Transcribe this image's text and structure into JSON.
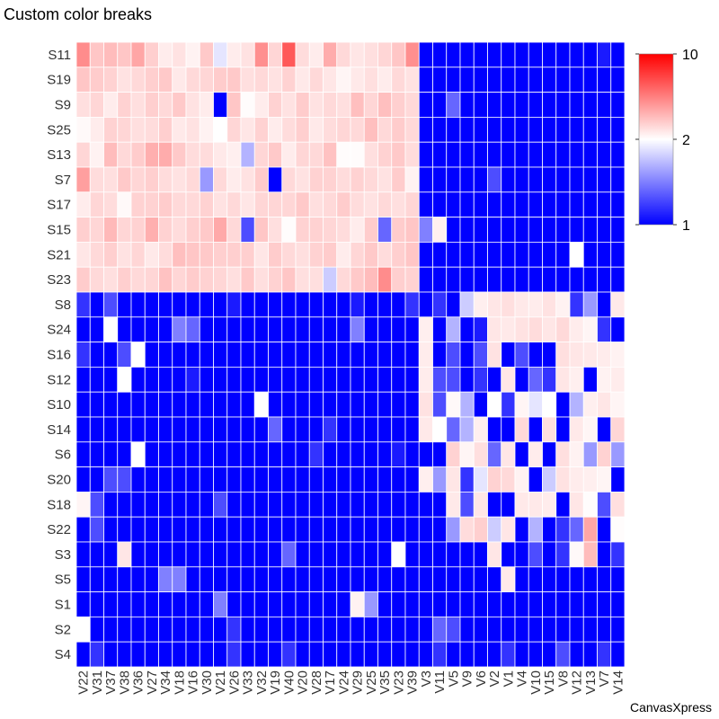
{
  "chart_data": {
    "type": "heatmap",
    "title": "Custom color breaks",
    "rows": [
      "S11",
      "S19",
      "S9",
      "S25",
      "S13",
      "S7",
      "S17",
      "S15",
      "S21",
      "S23",
      "S8",
      "S24",
      "S16",
      "S12",
      "S10",
      "S14",
      "S6",
      "S20",
      "S18",
      "S22",
      "S3",
      "S5",
      "S1",
      "S2",
      "S4"
    ],
    "columns": [
      "V22",
      "V31",
      "V37",
      "V38",
      "V36",
      "V27",
      "V34",
      "V18",
      "V16",
      "V30",
      "V21",
      "V26",
      "V33",
      "V32",
      "V19",
      "V40",
      "V20",
      "V28",
      "V17",
      "V24",
      "V29",
      "V25",
      "V35",
      "V23",
      "V39",
      "V3",
      "V11",
      "V5",
      "V9",
      "V6",
      "V2",
      "V1",
      "V4",
      "V10",
      "V15",
      "V8",
      "V12",
      "V13",
      "V7",
      "V14"
    ],
    "values": [
      [
        5.6,
        3.8,
        4.1,
        3.8,
        4.8,
        3.5,
        2.6,
        2.9,
        2.4,
        3.7,
        1.9,
        2.6,
        2.9,
        5.5,
        3.3,
        7.2,
        3.1,
        2.6,
        4.6,
        3.2,
        2.8,
        3.0,
        3.3,
        3.8,
        5.5,
        1.0,
        1.0,
        1.0,
        1.0,
        1.0,
        1.0,
        1.0,
        1.0,
        1.0,
        1.0,
        1.0,
        1.0,
        1.0,
        1.1,
        1.0
      ],
      [
        3.8,
        3.6,
        3.4,
        2.9,
        3.2,
        3.5,
        3.7,
        2.7,
        3.2,
        3.3,
        3.6,
        3.7,
        3.0,
        3.2,
        2.9,
        3.4,
        2.7,
        3.2,
        2.8,
        2.3,
        2.7,
        3.0,
        2.6,
        3.2,
        2.9,
        1.0,
        1.0,
        1.0,
        1.0,
        1.0,
        1.0,
        1.0,
        1.0,
        1.0,
        1.0,
        1.0,
        1.0,
        1.0,
        1.0,
        1.0
      ],
      [
        3.0,
        3.3,
        2.6,
        3.4,
        3.0,
        3.5,
        3.2,
        3.7,
        2.9,
        2.6,
        1.0,
        3.8,
        2.1,
        2.6,
        3.4,
        2.9,
        3.6,
        2.9,
        3.2,
        3.0,
        4.0,
        3.3,
        4.0,
        3.5,
        3.2,
        1.0,
        1.0,
        1.4,
        1.0,
        1.0,
        1.0,
        1.0,
        1.0,
        1.0,
        1.0,
        1.0,
        1.0,
        1.0,
        1.0,
        1.0
      ],
      [
        2.2,
        2.6,
        3.4,
        3.3,
        3.0,
        3.1,
        3.5,
        2.7,
        2.9,
        2.4,
        2.0,
        3.3,
        2.8,
        3.4,
        2.6,
        3.1,
        3.5,
        2.7,
        3.1,
        3.3,
        3.2,
        4.0,
        3.2,
        3.6,
        3.2,
        1.0,
        1.0,
        1.0,
        1.0,
        1.0,
        1.0,
        1.0,
        1.0,
        1.0,
        1.0,
        1.0,
        1.0,
        1.0,
        1.0,
        1.0
      ],
      [
        3.3,
        2.4,
        4.1,
        3.2,
        3.6,
        4.5,
        4.6,
        3.7,
        3.1,
        3.1,
        2.7,
        2.5,
        1.7,
        3.3,
        3.7,
        2.6,
        3.3,
        3.2,
        3.9,
        2.1,
        2.1,
        3.0,
        3.4,
        3.7,
        3.1,
        1.0,
        1.0,
        1.0,
        1.0,
        1.0,
        1.0,
        1.0,
        1.0,
        1.0,
        1.0,
        1.0,
        1.0,
        1.0,
        1.0,
        1.0
      ],
      [
        5.0,
        3.1,
        3.0,
        3.7,
        3.3,
        3.5,
        3.1,
        2.9,
        3.2,
        1.6,
        3.2,
        2.6,
        2.9,
        3.6,
        1.0,
        3.2,
        2.9,
        3.4,
        3.4,
        3.1,
        3.4,
        3.2,
        2.9,
        3.6,
        2.4,
        1.0,
        1.0,
        1.0,
        1.0,
        1.0,
        1.3,
        1.0,
        1.0,
        1.0,
        1.0,
        1.0,
        1.0,
        1.0,
        1.0,
        1.0
      ],
      [
        2.6,
        3.3,
        3.1,
        2.2,
        3.4,
        3.4,
        3.6,
        3.2,
        3.2,
        3.4,
        2.9,
        3.2,
        2.8,
        3.3,
        3.3,
        3.3,
        3.7,
        3.0,
        3.2,
        3.6,
        3.1,
        2.9,
        3.2,
        3.0,
        3.3,
        1.0,
        1.0,
        1.0,
        1.0,
        1.0,
        1.0,
        1.0,
        1.0,
        1.0,
        1.0,
        1.0,
        1.0,
        1.0,
        1.0,
        1.0
      ],
      [
        3.5,
        3.3,
        4.2,
        3.3,
        3.4,
        4.5,
        3.4,
        3.1,
        3.5,
        3.7,
        4.7,
        3.2,
        1.3,
        3.8,
        3.0,
        2.1,
        3.4,
        3.4,
        3.3,
        3.1,
        2.6,
        3.6,
        1.4,
        3.6,
        3.8,
        1.5,
        2.5,
        1.0,
        1.0,
        1.0,
        1.0,
        1.0,
        1.0,
        1.0,
        1.0,
        1.0,
        1.0,
        1.0,
        1.0,
        1.0
      ],
      [
        2.8,
        3.2,
        3.5,
        2.9,
        3.3,
        2.7,
        3.1,
        4.0,
        3.8,
        3.7,
        3.5,
        3.5,
        3.5,
        2.8,
        3.6,
        3.2,
        3.0,
        3.4,
        3.6,
        2.6,
        3.3,
        3.7,
        3.1,
        3.5,
        3.8,
        1.0,
        1.0,
        1.0,
        1.0,
        1.0,
        1.0,
        1.0,
        1.0,
        1.0,
        1.0,
        1.0,
        2.0,
        1.0,
        1.0,
        1.0
      ],
      [
        3.6,
        3.2,
        3.0,
        3.5,
        3.2,
        3.3,
        3.9,
        3.3,
        3.6,
        3.4,
        3.3,
        3.0,
        3.7,
        3.0,
        3.4,
        3.8,
        3.0,
        3.0,
        1.8,
        3.2,
        3.7,
        4.1,
        5.6,
        3.5,
        3.4,
        1.0,
        1.0,
        1.0,
        1.0,
        1.0,
        1.0,
        1.0,
        1.0,
        1.0,
        1.0,
        1.0,
        1.0,
        1.0,
        1.0,
        1.0
      ],
      [
        1.2,
        1.0,
        1.3,
        1.0,
        1.0,
        1.0,
        1.0,
        1.0,
        1.0,
        1.0,
        1.0,
        1.1,
        1.0,
        1.0,
        1.0,
        1.0,
        1.0,
        1.0,
        1.0,
        1.0,
        1.1,
        1.0,
        1.0,
        1.0,
        1.2,
        1.0,
        1.2,
        1.0,
        1.8,
        2.5,
        2.8,
        3.0,
        2.7,
        2.6,
        2.9,
        2.4,
        1.2,
        1.6,
        1.0,
        2.7
      ],
      [
        1.0,
        1.0,
        2.0,
        1.0,
        1.0,
        1.0,
        1.0,
        1.5,
        1.4,
        1.0,
        1.0,
        1.0,
        1.0,
        1.0,
        1.0,
        1.0,
        1.0,
        1.0,
        1.0,
        1.0,
        1.5,
        1.0,
        1.0,
        1.0,
        1.0,
        2.5,
        1.0,
        1.7,
        1.0,
        1.1,
        2.8,
        2.7,
        2.9,
        3.1,
        2.8,
        3.2,
        2.6,
        2.3,
        1.2,
        1.0
      ],
      [
        1.2,
        1.0,
        1.0,
        1.3,
        2.0,
        1.0,
        1.0,
        1.0,
        1.0,
        1.0,
        1.0,
        1.0,
        1.0,
        1.0,
        1.0,
        1.0,
        1.0,
        1.0,
        1.0,
        1.0,
        1.0,
        1.0,
        1.0,
        1.0,
        1.0,
        2.6,
        1.0,
        1.3,
        1.0,
        1.3,
        2.9,
        1.0,
        1.3,
        1.0,
        1.0,
        3.0,
        2.8,
        2.7,
        2.6,
        2.4
      ],
      [
        1.0,
        1.0,
        1.0,
        2.0,
        1.0,
        1.0,
        1.0,
        1.0,
        1.1,
        1.0,
        1.0,
        1.0,
        1.0,
        1.0,
        1.0,
        1.0,
        1.0,
        1.0,
        1.0,
        1.0,
        1.0,
        1.0,
        1.0,
        1.0,
        1.0,
        2.6,
        1.3,
        1.3,
        1.0,
        1.2,
        1.0,
        2.8,
        1.0,
        1.4,
        1.2,
        2.8,
        2.5,
        1.0,
        2.4,
        2.6
      ],
      [
        1.0,
        1.0,
        1.0,
        1.0,
        1.0,
        1.0,
        1.0,
        1.0,
        1.0,
        1.0,
        1.0,
        1.0,
        1.0,
        2.0,
        1.0,
        1.0,
        1.0,
        1.0,
        1.0,
        1.0,
        1.0,
        1.0,
        1.0,
        1.0,
        1.0,
        2.9,
        1.3,
        2.2,
        1.7,
        1.0,
        2.0,
        1.2,
        2.3,
        1.9,
        2.0,
        1.0,
        1.7,
        2.5,
        2.8,
        2.3
      ],
      [
        1.0,
        1.0,
        1.0,
        1.0,
        1.0,
        1.0,
        1.0,
        1.0,
        1.0,
        1.0,
        1.0,
        1.0,
        1.0,
        1.0,
        1.4,
        1.0,
        1.0,
        1.0,
        1.2,
        1.0,
        1.0,
        1.0,
        1.0,
        1.0,
        1.0,
        2.7,
        2.0,
        1.4,
        1.7,
        2.5,
        1.0,
        1.0,
        3.2,
        1.0,
        3.0,
        1.0,
        2.7,
        2.3,
        1.0,
        3.3
      ],
      [
        1.0,
        1.0,
        1.0,
        1.0,
        2.0,
        1.0,
        1.0,
        1.0,
        1.0,
        1.0,
        1.0,
        1.0,
        1.0,
        1.0,
        1.0,
        1.0,
        1.0,
        1.2,
        1.0,
        1.0,
        1.0,
        1.0,
        1.0,
        1.1,
        1.0,
        1.0,
        1.0,
        3.4,
        2.3,
        3.0,
        1.4,
        2.8,
        1.0,
        2.6,
        1.0,
        3.0,
        2.4,
        1.6,
        3.4,
        1.6
      ],
      [
        1.0,
        1.0,
        1.3,
        1.3,
        1.0,
        1.0,
        1.0,
        1.0,
        1.0,
        1.0,
        1.0,
        1.0,
        1.0,
        1.0,
        1.0,
        1.0,
        1.0,
        1.0,
        1.0,
        1.0,
        1.0,
        1.0,
        1.0,
        1.0,
        1.0,
        2.5,
        1.6,
        2.8,
        1.2,
        1.9,
        3.4,
        3.2,
        2.4,
        1.0,
        1.8,
        2.9,
        2.6,
        2.5,
        2.3,
        1.0
      ],
      [
        2.3,
        1.3,
        1.0,
        1.0,
        1.0,
        1.0,
        1.0,
        1.0,
        1.0,
        1.0,
        1.3,
        1.0,
        1.0,
        1.0,
        1.0,
        1.0,
        1.0,
        1.0,
        1.0,
        1.0,
        1.0,
        1.0,
        1.0,
        1.0,
        1.0,
        1.0,
        1.0,
        2.7,
        1.3,
        2.8,
        1.0,
        1.0,
        2.7,
        2.7,
        2.6,
        1.0,
        2.8,
        2.1,
        1.3,
        3.0
      ],
      [
        1.0,
        1.3,
        1.0,
        1.0,
        1.0,
        1.0,
        1.0,
        1.0,
        1.0,
        1.0,
        1.0,
        1.0,
        1.0,
        1.0,
        1.0,
        1.0,
        1.0,
        1.0,
        1.0,
        1.0,
        1.0,
        1.0,
        1.0,
        1.0,
        1.0,
        1.0,
        1.0,
        1.6,
        3.1,
        3.5,
        1.8,
        2.8,
        1.0,
        1.7,
        1.0,
        1.2,
        1.4,
        4.8,
        1.0,
        2.1
      ],
      [
        1.0,
        1.0,
        1.0,
        2.8,
        1.0,
        1.0,
        1.0,
        1.0,
        1.0,
        1.0,
        1.0,
        1.0,
        1.0,
        1.0,
        1.0,
        1.4,
        1.0,
        1.0,
        1.0,
        1.0,
        1.0,
        1.0,
        1.0,
        2.0,
        1.0,
        1.0,
        1.0,
        1.0,
        1.0,
        1.0,
        2.8,
        1.0,
        1.0,
        1.3,
        1.0,
        1.2,
        2.2,
        4.1,
        1.0,
        1.2
      ],
      [
        1.0,
        1.0,
        1.0,
        1.0,
        1.0,
        1.0,
        1.5,
        1.5,
        1.0,
        1.0,
        1.0,
        1.0,
        1.0,
        1.0,
        1.0,
        1.0,
        1.0,
        1.0,
        1.0,
        1.0,
        1.0,
        1.0,
        1.0,
        1.0,
        1.0,
        1.0,
        1.0,
        1.0,
        1.0,
        1.0,
        1.0,
        2.7,
        1.0,
        1.0,
        1.0,
        1.0,
        1.0,
        1.0,
        1.0,
        1.0
      ],
      [
        1.0,
        1.0,
        1.0,
        1.0,
        1.0,
        1.0,
        1.0,
        1.0,
        1.0,
        1.0,
        1.5,
        1.0,
        1.0,
        1.0,
        1.0,
        1.0,
        1.0,
        1.0,
        1.0,
        1.0,
        2.4,
        1.6,
        1.0,
        1.0,
        1.0,
        1.0,
        1.0,
        1.0,
        1.0,
        1.0,
        1.0,
        1.0,
        1.0,
        1.0,
        1.0,
        1.0,
        1.0,
        1.0,
        1.0,
        1.0
      ],
      [
        2.0,
        1.0,
        1.0,
        1.0,
        1.0,
        1.0,
        1.0,
        1.0,
        1.0,
        1.0,
        1.0,
        1.2,
        1.0,
        1.0,
        1.0,
        1.0,
        1.0,
        1.0,
        1.0,
        1.0,
        1.0,
        1.0,
        1.0,
        1.0,
        1.0,
        1.0,
        1.4,
        1.3,
        1.0,
        1.0,
        1.0,
        1.0,
        1.0,
        1.0,
        1.0,
        1.0,
        1.0,
        1.0,
        1.0,
        1.0
      ],
      [
        1.0,
        1.2,
        1.0,
        1.0,
        1.0,
        1.0,
        1.0,
        1.0,
        1.0,
        1.0,
        1.0,
        1.2,
        1.0,
        1.0,
        1.0,
        1.2,
        1.0,
        1.0,
        1.0,
        1.0,
        1.0,
        1.0,
        1.0,
        1.0,
        1.0,
        1.0,
        1.2,
        1.0,
        1.0,
        1.0,
        1.0,
        1.2,
        1.0,
        1.0,
        1.0,
        1.3,
        1.0,
        1.0,
        1.2,
        1.0
      ]
    ],
    "color_scale": {
      "breaks": [
        1,
        2,
        10
      ],
      "colors": [
        "#0000ff",
        "#ffffff",
        "#ff0000"
      ],
      "legend_labels": [
        "1",
        "2",
        "10"
      ]
    },
    "legend_position": "right",
    "grid_lines": true,
    "grid_color": "#ffffff"
  },
  "footer": {
    "brand": "CanvasXpress"
  }
}
